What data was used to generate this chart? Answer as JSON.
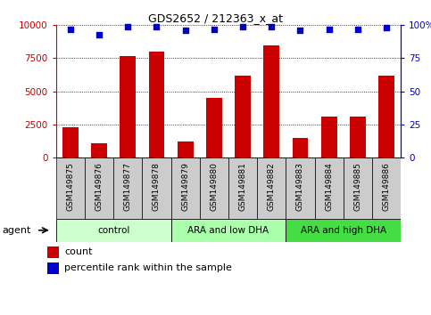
{
  "title": "GDS2652 / 212363_x_at",
  "samples": [
    "GSM149875",
    "GSM149876",
    "GSM149877",
    "GSM149878",
    "GSM149879",
    "GSM149880",
    "GSM149881",
    "GSM149882",
    "GSM149883",
    "GSM149884",
    "GSM149885",
    "GSM149886"
  ],
  "counts": [
    2300,
    1100,
    7700,
    8000,
    1200,
    4500,
    6200,
    8500,
    1500,
    3100,
    3100,
    6200
  ],
  "percentile": [
    97,
    93,
    99,
    99,
    96,
    97,
    99,
    99,
    96,
    97,
    97,
    98
  ],
  "bar_color": "#cc0000",
  "dot_color": "#0000cc",
  "ylim_left": [
    0,
    10000
  ],
  "ylim_right": [
    0,
    100
  ],
  "yticks_left": [
    0,
    2500,
    5000,
    7500,
    10000
  ],
  "yticks_right": [
    0,
    25,
    50,
    75,
    100
  ],
  "groups": [
    {
      "label": "control",
      "start": 0,
      "end": 3,
      "color": "#ccffcc"
    },
    {
      "label": "ARA and low DHA",
      "start": 4,
      "end": 7,
      "color": "#aaffaa"
    },
    {
      "label": "ARA and high DHA",
      "start": 8,
      "end": 11,
      "color": "#44dd44"
    }
  ],
  "agent_label": "agent",
  "legend_count_label": "count",
  "legend_pct_label": "percentile rank within the sample",
  "left_axis_color": "#cc0000",
  "right_axis_color": "#0000cc",
  "xtick_bg_color": "#cccccc",
  "fig_bg_color": "#ffffff",
  "grid_color": "#000000"
}
